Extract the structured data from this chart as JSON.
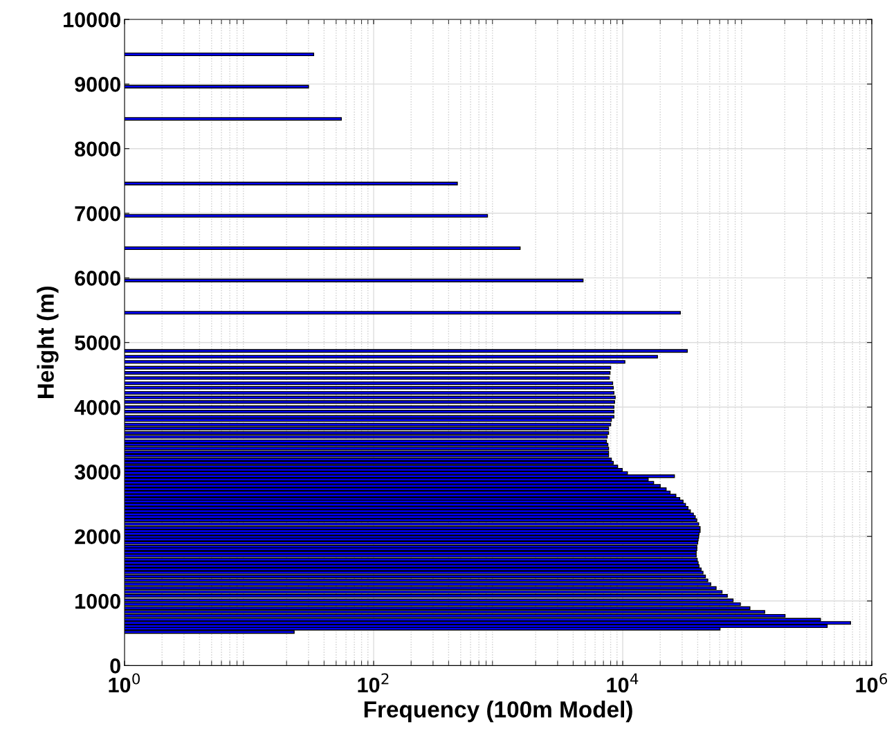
{
  "chart_data": {
    "type": "bar",
    "orientation": "horizontal",
    "xlabel": "Frequency (100m Model)",
    "ylabel": "Height (m)",
    "x": [
      9460,
      8960,
      8460,
      7460,
      6960,
      6460,
      5960,
      5460,
      4870,
      4780,
      4700,
      4610,
      4530,
      4450,
      4370,
      4300,
      4220,
      4150,
      4080,
      4000,
      3930,
      3850,
      3800,
      3730,
      3670,
      3600,
      3540,
      3470,
      3420,
      3360,
      3300,
      3250,
      3190,
      3140,
      3080,
      3030,
      2980,
      2930,
      2880,
      2830,
      2780,
      2730,
      2680,
      2630,
      2580,
      2540,
      2490,
      2440,
      2390,
      2340,
      2300,
      2250,
      2190,
      2130,
      2080,
      2040,
      1990,
      1950,
      1900,
      1840,
      1800,
      1750,
      1700,
      1640,
      1590,
      1540,
      1490,
      1440,
      1380,
      1320,
      1260,
      1200,
      1140,
      1080,
      1010,
      950,
      890,
      830,
      770,
      710,
      660,
      610,
      570,
      520
    ],
    "values": [
      33,
      30,
      55,
      470,
      820,
      1500,
      4800,
      29000,
      33000,
      19000,
      10400,
      8000,
      7900,
      7800,
      8300,
      8400,
      8500,
      8700,
      8600,
      8500,
      8500,
      8500,
      8100,
      8000,
      7700,
      7700,
      7500,
      7400,
      7600,
      7700,
      7700,
      7700,
      8100,
      8400,
      9100,
      9900,
      10900,
      26000,
      16000,
      17700,
      20000,
      22300,
      24000,
      26700,
      28700,
      30500,
      31900,
      33400,
      34900,
      36900,
      38200,
      39300,
      40700,
      41800,
      41800,
      41000,
      40700,
      40300,
      40000,
      39300,
      39300,
      38900,
      38900,
      39600,
      40300,
      41000,
      42600,
      44100,
      46100,
      48200,
      50900,
      56200,
      62700,
      69100,
      76900,
      88000,
      105000,
      138000,
      201000,
      387000,
      675000,
      438000,
      60400,
      23
    ],
    "color": "#0000ff",
    "log": "x",
    "xlim": [
      1,
      1000000
    ],
    "xticks": [
      {
        "value": 1,
        "label": "10$^{0}$"
      },
      {
        "value": 100,
        "label": "10$^{2}$"
      },
      {
        "value": 10000,
        "label": "10$^{4}$"
      },
      {
        "value": 1000000,
        "label": "10$^{6}$"
      }
    ],
    "ylim": [
      0,
      10000
    ],
    "yticks": [
      0,
      1000,
      2000,
      3000,
      4000,
      5000,
      6000,
      7000,
      8000,
      9000,
      10000
    ],
    "grid": true
  }
}
